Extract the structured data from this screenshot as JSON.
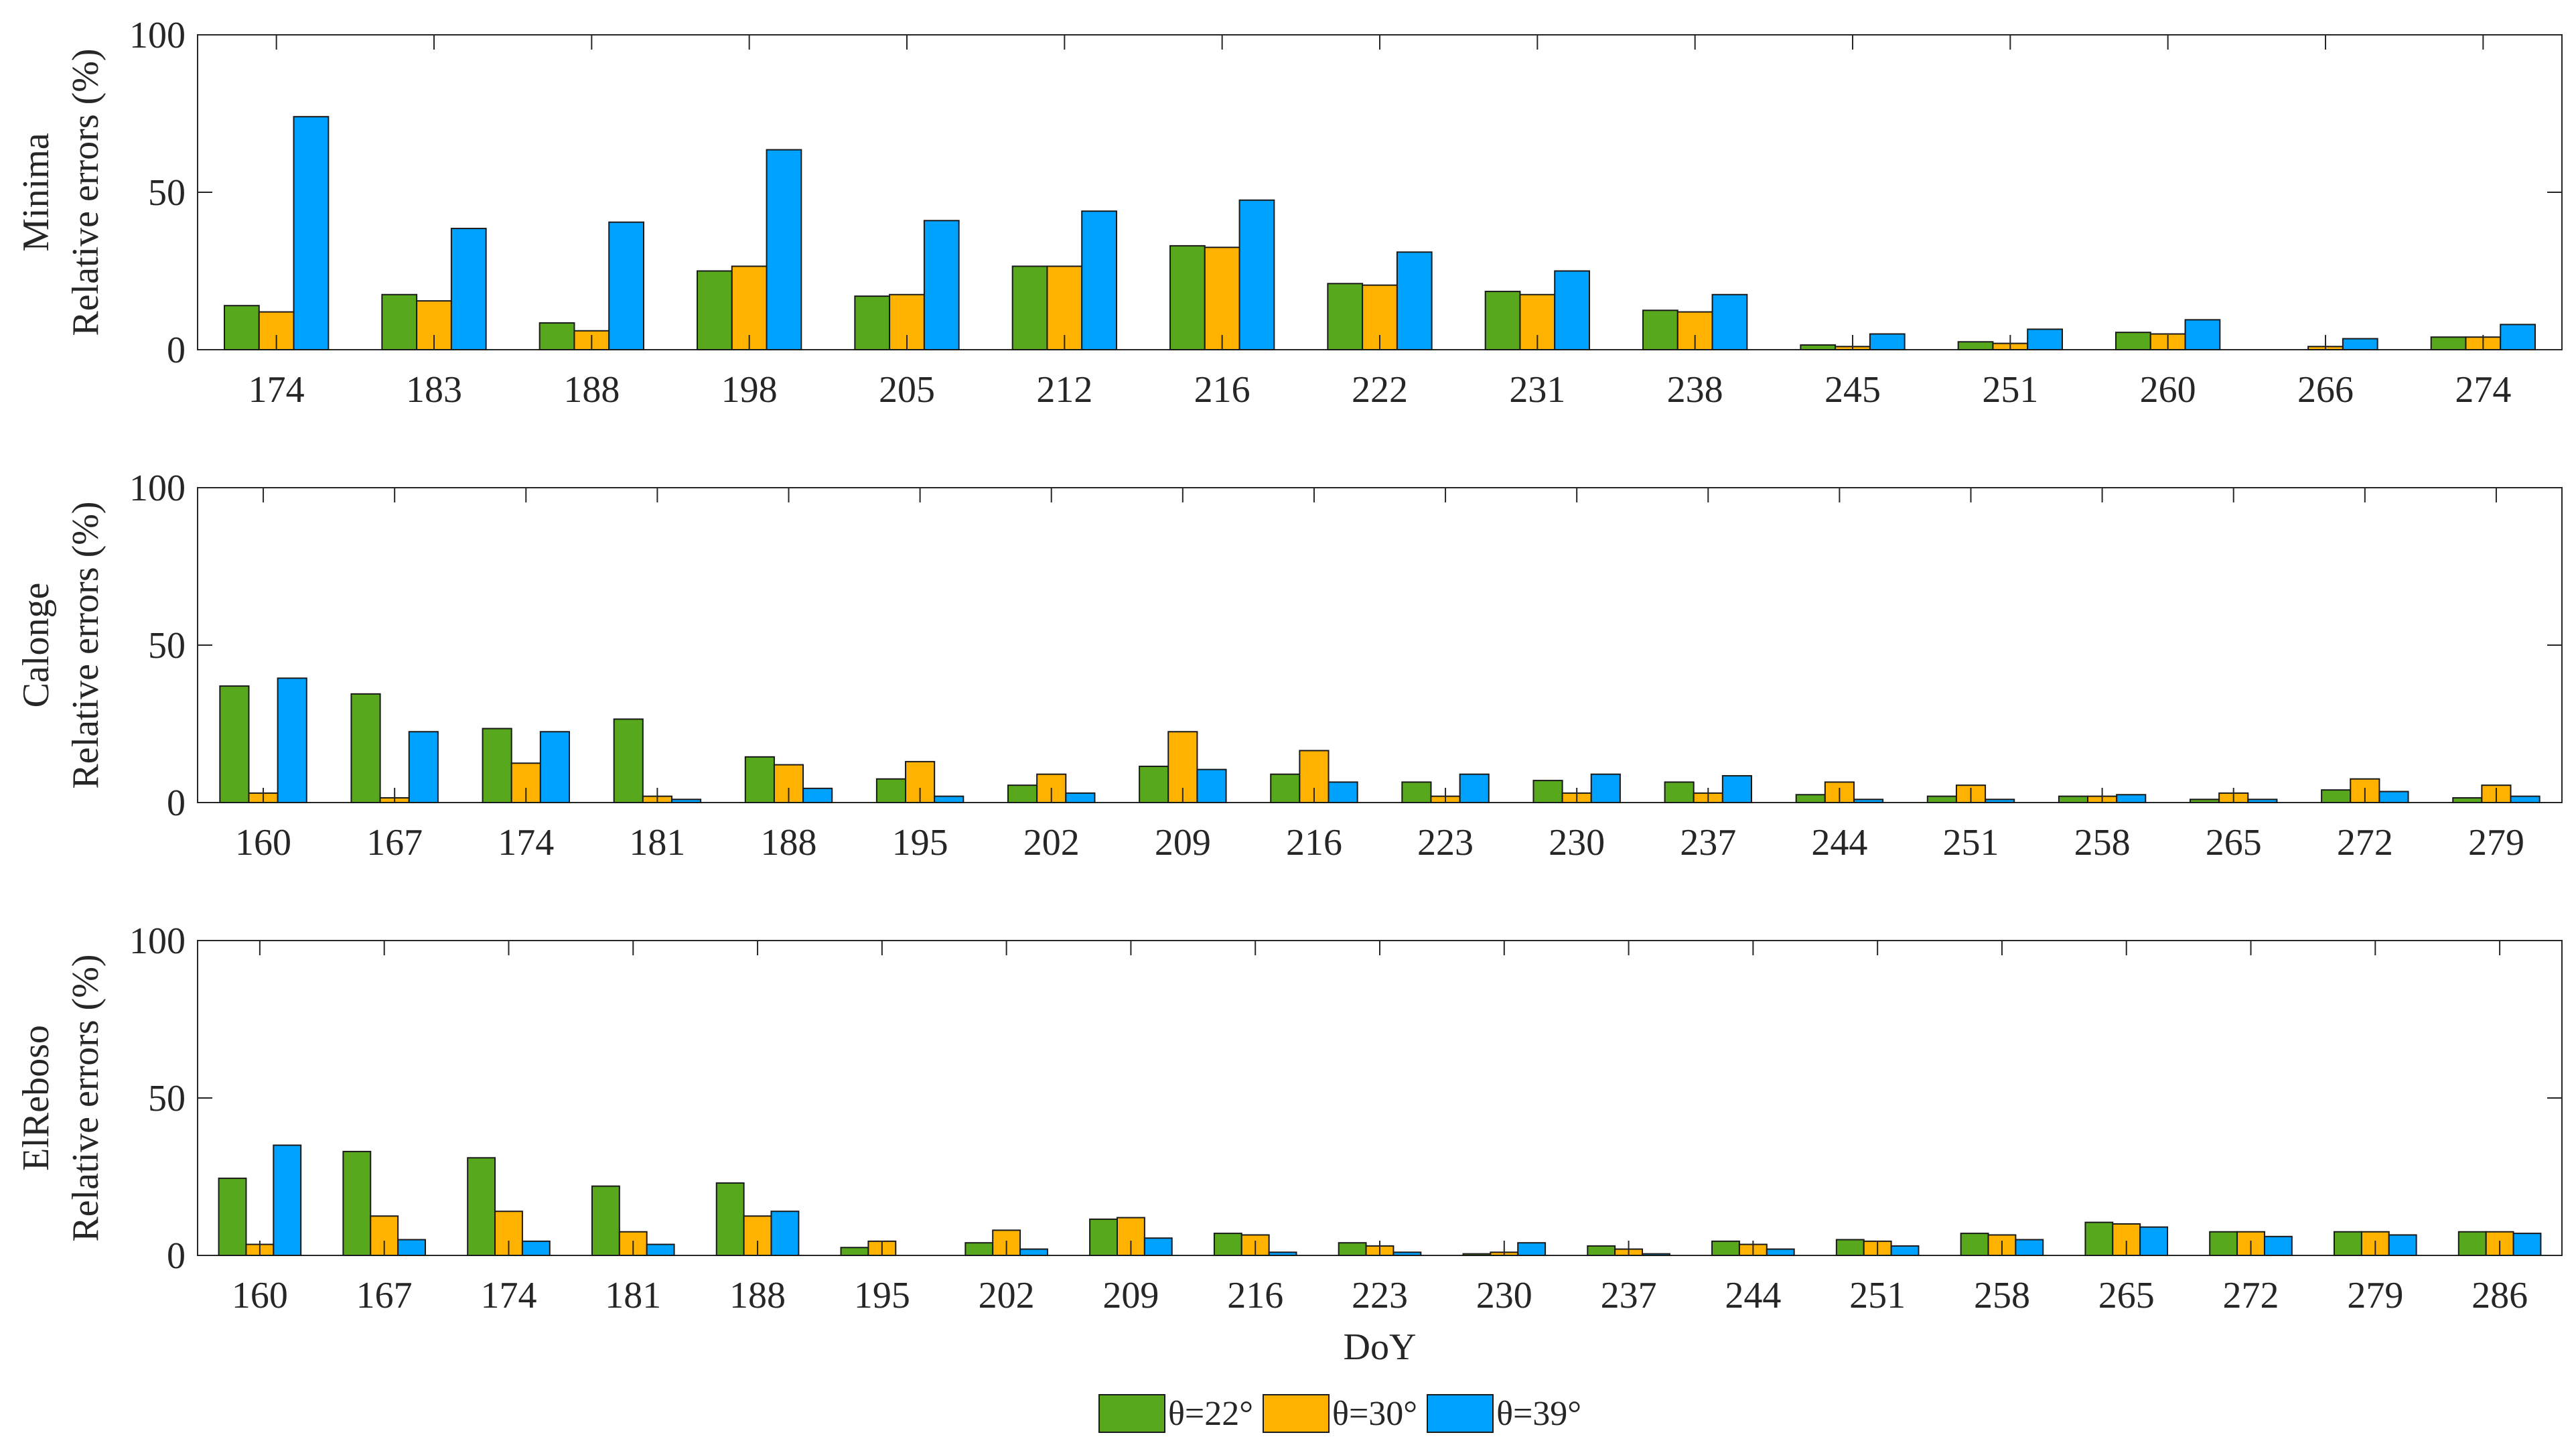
{
  "series_names": [
    "θ=22°",
    "θ=30°",
    "θ=39°"
  ],
  "series_colors": [
    "#57a81c",
    "#ffb300",
    "#00a2ff"
  ],
  "chart_data": [
    {
      "type": "bar",
      "title": "",
      "ylabel_top": "Minima",
      "ylabel": "Relative errors (%)",
      "xlabel": "",
      "ylim": [
        0,
        100
      ],
      "yticks": [
        0,
        50,
        100
      ],
      "categories": [
        "174",
        "183",
        "188",
        "198",
        "205",
        "212",
        "216",
        "222",
        "231",
        "238",
        "245",
        "251",
        "260",
        "266",
        "274"
      ],
      "series": [
        {
          "name": "θ=22°",
          "values": [
            14,
            17.5,
            8.5,
            25,
            17,
            26.5,
            33,
            21,
            18.5,
            12.5,
            1.5,
            2.5,
            5.5,
            0,
            4
          ]
        },
        {
          "name": "θ=30°",
          "values": [
            12,
            15.5,
            6,
            26.5,
            17.5,
            26.5,
            32.5,
            20.5,
            17.5,
            12,
            1,
            2,
            5,
            1,
            4
          ]
        },
        {
          "name": "θ=39°",
          "values": [
            74,
            38.5,
            40.5,
            63.5,
            41,
            44,
            47.5,
            31,
            25,
            17.5,
            5,
            6.5,
            9.5,
            3.5,
            8
          ]
        }
      ]
    },
    {
      "type": "bar",
      "title": "",
      "ylabel_top": "Calonge",
      "ylabel": "Relative errors (%)",
      "xlabel": "",
      "ylim": [
        0,
        100
      ],
      "yticks": [
        0,
        50,
        100
      ],
      "categories": [
        "160",
        "167",
        "174",
        "181",
        "188",
        "195",
        "202",
        "209",
        "216",
        "223",
        "230",
        "237",
        "244",
        "251",
        "258",
        "265",
        "272",
        "279"
      ],
      "series": [
        {
          "name": "θ=22°",
          "values": [
            37,
            34.5,
            23.5,
            26.5,
            14.5,
            7.5,
            5.5,
            11.5,
            9,
            6.5,
            7,
            6.5,
            2.5,
            2,
            2,
            1,
            4,
            1.5
          ]
        },
        {
          "name": "θ=30°",
          "values": [
            3,
            1.5,
            12.5,
            2,
            12,
            13,
            9,
            22.5,
            16.5,
            2,
            3,
            3,
            6.5,
            5.5,
            2,
            3,
            7.5,
            5.5
          ]
        },
        {
          "name": "θ=39°",
          "values": [
            39.5,
            22.5,
            22.5,
            1,
            4.5,
            2,
            3,
            10.5,
            6.5,
            9,
            9,
            8.5,
            1,
            1,
            2.5,
            1,
            3.5,
            2
          ]
        }
      ]
    },
    {
      "type": "bar",
      "title": "",
      "ylabel_top": "ElReboso",
      "ylabel": "Relative errors (%)",
      "xlabel": "DoY",
      "ylim": [
        0,
        100
      ],
      "yticks": [
        0,
        50,
        100
      ],
      "categories": [
        "160",
        "167",
        "174",
        "181",
        "188",
        "195",
        "202",
        "209",
        "216",
        "223",
        "230",
        "237",
        "244",
        "251",
        "258",
        "265",
        "272",
        "279",
        "286"
      ],
      "series": [
        {
          "name": "θ=22°",
          "values": [
            24.5,
            33,
            31,
            22,
            23,
            2.5,
            4,
            11.5,
            7,
            4,
            0.5,
            3,
            4.5,
            5,
            7,
            10.5,
            7.5,
            7.5,
            7.5
          ]
        },
        {
          "name": "θ=30°",
          "values": [
            3.5,
            12.5,
            14,
            7.5,
            12.5,
            4.5,
            8,
            12,
            6.5,
            3,
            1,
            2,
            3.5,
            4.5,
            6.5,
            10,
            7.5,
            7.5,
            7.5
          ]
        },
        {
          "name": "θ=39°",
          "values": [
            35,
            5,
            4.5,
            3.5,
            14,
            0,
            2,
            5.5,
            1,
            1,
            4,
            0.5,
            2,
            3,
            5,
            9,
            6,
            6.5,
            7
          ]
        }
      ]
    }
  ]
}
